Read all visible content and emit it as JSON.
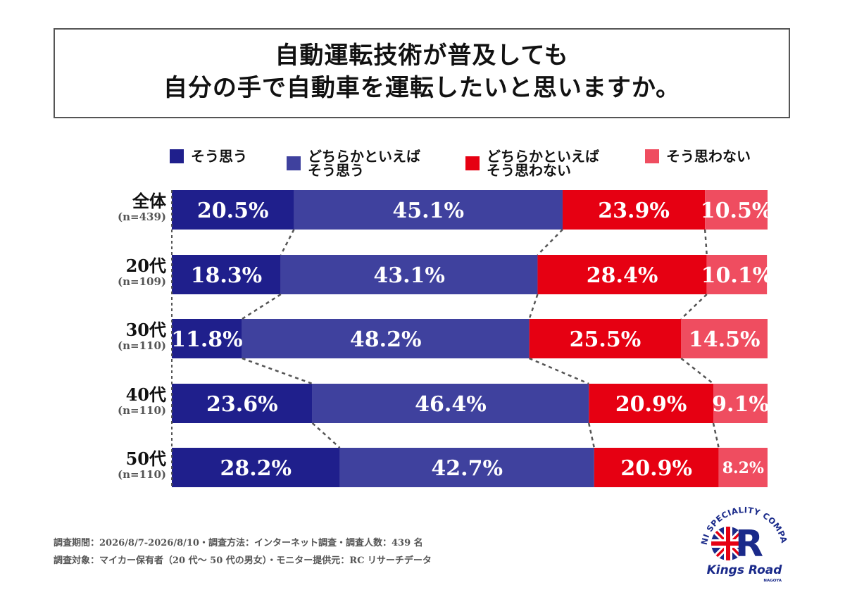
{
  "title": {
    "line1": "自動運転技術が普及しても",
    "line2": "自分の手で自動車を運転したいと思いますか。"
  },
  "chart_data": {
    "type": "bar",
    "orientation": "horizontal-stacked-100",
    "categories": [
      "全体",
      "20代",
      "30代",
      "40代",
      "50代"
    ],
    "sample_sizes": [
      "(n=439)",
      "(n=109)",
      "(n=110)",
      "(n=110)",
      "(n=110)"
    ],
    "series": [
      {
        "name": "そう思う",
        "color": "#1f1f8c",
        "values": [
          20.5,
          18.3,
          11.8,
          23.6,
          28.2
        ],
        "labels": [
          "20.5%",
          "18.3%",
          "11.8%",
          "23.6%",
          "28.2%"
        ]
      },
      {
        "name": "どちらかといえば\nそう思う",
        "color": "#3f419e",
        "values": [
          45.1,
          43.1,
          48.2,
          46.4,
          42.7
        ],
        "labels": [
          "45.1%",
          "43.1%",
          "48.2%",
          "46.4%",
          "42.7%"
        ]
      },
      {
        "name": "どちらかといえば\nそう思わない",
        "color": "#e60012",
        "values": [
          23.9,
          28.4,
          25.5,
          20.9,
          20.9
        ],
        "labels": [
          "23.9%",
          "28.4%",
          "25.5%",
          "20.9%",
          "20.9%"
        ]
      },
      {
        "name": "そう思わない",
        "color": "#ef4d60",
        "values": [
          10.5,
          10.1,
          14.5,
          9.1,
          8.2
        ],
        "labels": [
          "10.5%",
          "10.1%",
          "14.5%",
          "9.1%",
          "8.2%"
        ]
      }
    ],
    "xlim": [
      0,
      100
    ],
    "legend": "top",
    "connector_lines": "dashed"
  },
  "notes": {
    "line1": "調査期間：2026/8/7-2026/8/10・調査方法：インターネット調査・調査人数：439 名",
    "line2": "調査対象：マイカー保有者（20 代～ 50 代の男女）・モニター提供元：RC リサーチデータ"
  },
  "logo": {
    "arc_text": "MINI SPECIALITY COMPANY",
    "brand": "Kings Road",
    "sub": "NAGOYA",
    "colors": {
      "navy": "#1a2a8a",
      "red": "#e60012"
    }
  }
}
